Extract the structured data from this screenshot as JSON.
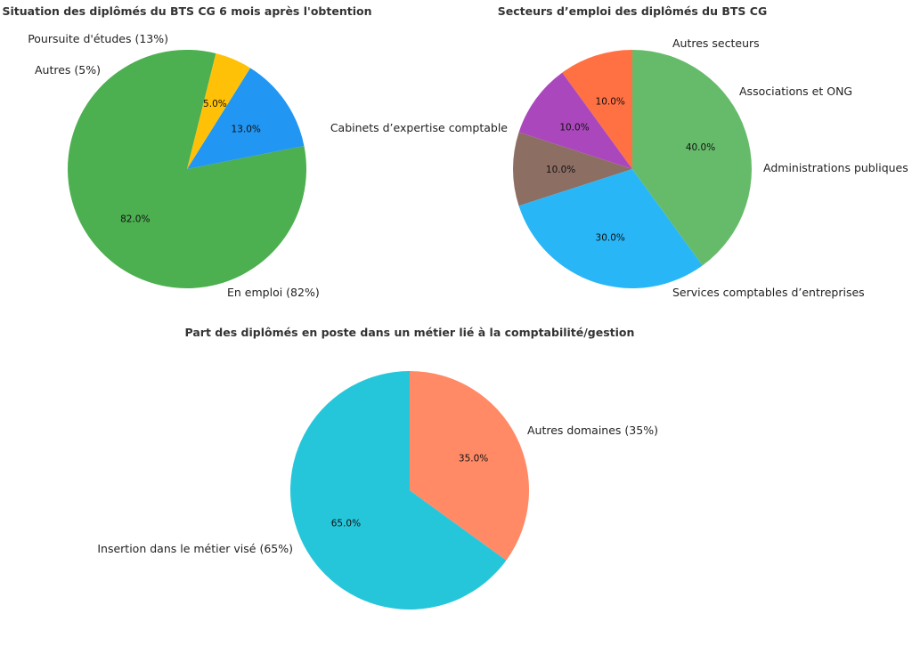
{
  "chart_data": [
    {
      "type": "pie",
      "title": "Situation des diplômés du BTS CG 6 mois après l'obtention",
      "slices": [
        {
          "label": "En emploi (82%)",
          "value": 82,
          "pct_text": "82.0%",
          "color": "#4caf50"
        },
        {
          "label": "Poursuite d'études (13%)",
          "value": 13,
          "pct_text": "13.0%",
          "color": "#2196f3"
        },
        {
          "label": "Autres (5%)",
          "value": 5,
          "pct_text": "5.0%",
          "color": "#ffc107"
        }
      ]
    },
    {
      "type": "pie",
      "title": "Secteurs d’emploi des diplômés du BTS CG",
      "slices": [
        {
          "label": "Cabinets d’expertise comptable",
          "value": 40,
          "pct_text": "40.0%",
          "color": "#66bb6a"
        },
        {
          "label": "Services comptables d’entreprises",
          "value": 30,
          "pct_text": "30.0%",
          "color": "#29b6f6"
        },
        {
          "label": "Administrations publiques",
          "value": 10,
          "pct_text": "10.0%",
          "color": "#8d6e63"
        },
        {
          "label": "Associations et ONG",
          "value": 10,
          "pct_text": "10.0%",
          "color": "#ab47bc"
        },
        {
          "label": "Autres secteurs",
          "value": 10,
          "pct_text": "10.0%",
          "color": "#ff7043"
        }
      ]
    },
    {
      "type": "pie",
      "title": "Part des diplômés en poste dans un métier lié à la comptabilité/gestion",
      "slices": [
        {
          "label": "Insertion dans le métier visé (65%)",
          "value": 65,
          "pct_text": "65.0%",
          "color": "#26c6da"
        },
        {
          "label": "Autres domaines (35%)",
          "value": 35,
          "pct_text": "35.0%",
          "color": "#ff8a65"
        }
      ]
    }
  ]
}
